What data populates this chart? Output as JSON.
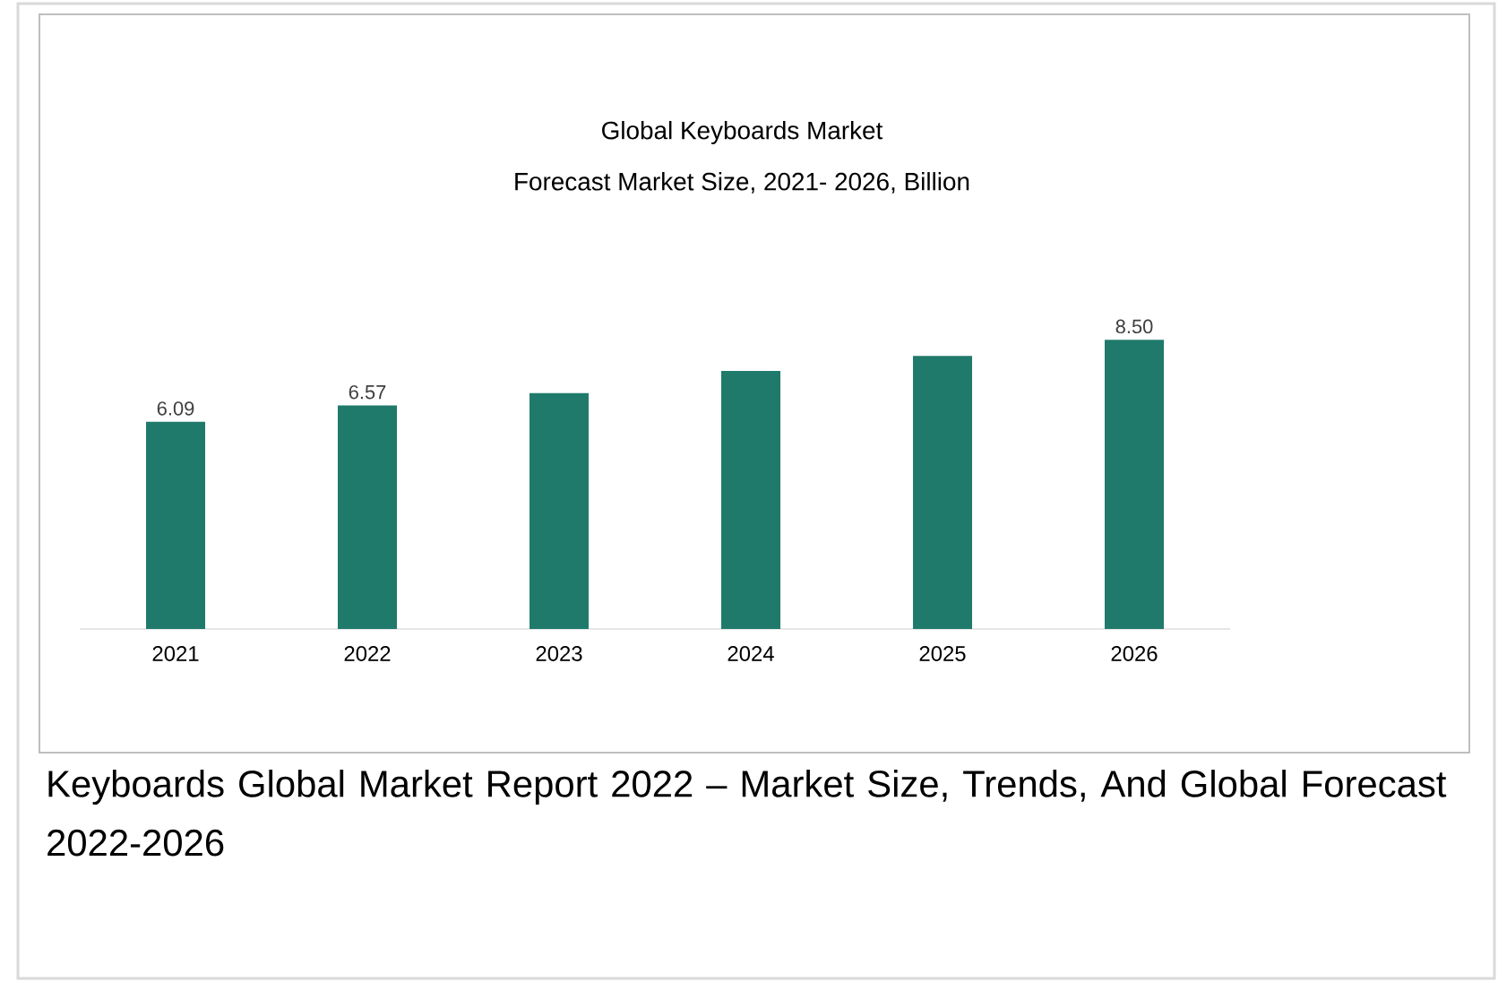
{
  "chart_data": {
    "type": "bar",
    "title": "Global Keyboards Market",
    "subtitle": "Forecast Market Size, 2021- 2026, Billion",
    "categories": [
      "2021",
      "2022",
      "2023",
      "2024",
      "2025",
      "2026"
    ],
    "values": [
      6.09,
      6.57,
      6.93,
      7.58,
      8.02,
      8.5
    ],
    "value_labels": [
      "6.09",
      "6.57",
      null,
      null,
      null,
      "8.50"
    ],
    "color": "#1f7a6b",
    "annotations": [
      "Keyboards Global Market Report 2022 – Market Size, Trends, And Global Forecast 2022-2026"
    ]
  }
}
